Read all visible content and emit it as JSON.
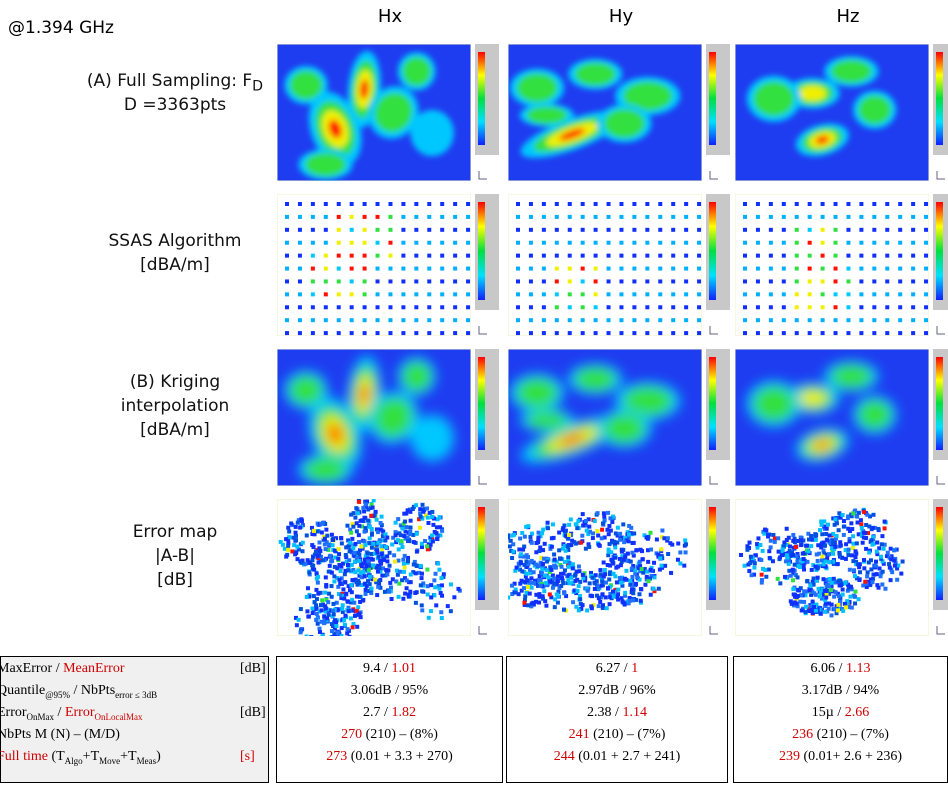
{
  "frequency": "@1.394 GHz",
  "columns": [
    "Hx",
    "Hy",
    "Hz"
  ],
  "row_labels": [
    [
      [
        {
          "text": "(A) Full Sampling: F"
        },
        {
          "text": "D",
          "sub": true
        }
      ],
      [
        {
          "text": "D =3363pts"
        }
      ]
    ],
    [
      [
        {
          "text": "SSAS Algorithm"
        }
      ],
      [
        {
          "text": "[dBA/m]"
        }
      ]
    ],
    [
      [
        {
          "text": "(B) Kriging"
        }
      ],
      [
        {
          "text": "interpolation"
        }
      ],
      [
        {
          "text": "[dBA/m]"
        }
      ]
    ],
    [
      [
        {
          "text": "Error map"
        }
      ],
      [
        {
          "text": "|A-B|"
        }
      ],
      [
        {
          "text": "[dB]"
        }
      ]
    ]
  ],
  "table": {
    "labels": [
      {
        "segments": [
          {
            "text": "MaxError"
          },
          {
            "text": " / "
          },
          {
            "text": "MeanError",
            "color": "#d00000"
          }
        ],
        "unit": {
          "text": "[dB]"
        }
      },
      {
        "segments": [
          {
            "text": "Quantile"
          },
          {
            "text": "@95%",
            "sub": true
          },
          {
            "text": " / NbPts"
          },
          {
            "text": "error ≤ 3dB",
            "sub": true
          }
        ]
      },
      {
        "segments": [
          {
            "text": "Error"
          },
          {
            "text": "OnMax",
            "sub": true
          },
          {
            "text": " / "
          },
          {
            "text": "Error",
            "color": "#d00000"
          },
          {
            "text": "OnLocalMax",
            "sub": true,
            "color": "#d00000"
          }
        ],
        "unit": {
          "text": "[dB]"
        }
      },
      {
        "segments": [
          {
            "text": "NbPts M (N) – (M/D)"
          }
        ]
      },
      {
        "segments": [
          {
            "text": "Full time",
            "color": "#d00000"
          },
          {
            "text": " (T"
          },
          {
            "text": "Algo",
            "sub": true
          },
          {
            "text": "+T"
          },
          {
            "text": "Move",
            "sub": true
          },
          {
            "text": "+T"
          },
          {
            "text": "Meas",
            "sub": true
          },
          {
            "text": ")"
          }
        ],
        "unit": {
          "text": "[s]",
          "color": "#d00000"
        }
      }
    ],
    "cells": [
      [
        [
          {
            "text": "9.4 / "
          },
          {
            "text": "1.01",
            "color": "#d00000"
          }
        ],
        [
          {
            "text": "3.06dB / 95%"
          }
        ],
        [
          {
            "text": "2.7 / "
          },
          {
            "text": "1.82",
            "color": "#d00000"
          }
        ],
        [
          {
            "text": "270",
            "color": "#d00000"
          },
          {
            "text": " (210) – (8%)"
          }
        ],
        [
          {
            "text": "273",
            "color": "#d00000"
          },
          {
            "text": " (0.01 + 3.3 + 270)"
          }
        ]
      ],
      [
        [
          {
            "text": "6.27 / "
          },
          {
            "text": "1",
            "color": "#d00000"
          }
        ],
        [
          {
            "text": "2.97dB / 96%"
          }
        ],
        [
          {
            "text": "2.38 / "
          },
          {
            "text": "1.14",
            "color": "#d00000"
          }
        ],
        [
          {
            "text": "241",
            "color": "#d00000"
          },
          {
            "text": " (210) – (7%)"
          }
        ],
        [
          {
            "text": "244",
            "color": "#d00000"
          },
          {
            "text": " (0.01 + 2.7 + 241)"
          }
        ]
      ],
      [
        [
          {
            "text": "6.06 / "
          },
          {
            "text": "1.13",
            "color": "#d00000"
          }
        ],
        [
          {
            "text": "3.17dB / 94%"
          }
        ],
        [
          {
            "text": "15µ / "
          },
          {
            "text": "2.66",
            "color": "#d00000"
          }
        ],
        [
          {
            "text": "236",
            "color": "#d00000"
          },
          {
            "text": " (210) – (7%)"
          }
        ],
        [
          {
            "text": "239",
            "color": "#d00000"
          },
          {
            "text": " (0.01+ 2.6 + 236)"
          }
        ]
      ]
    ]
  }
}
